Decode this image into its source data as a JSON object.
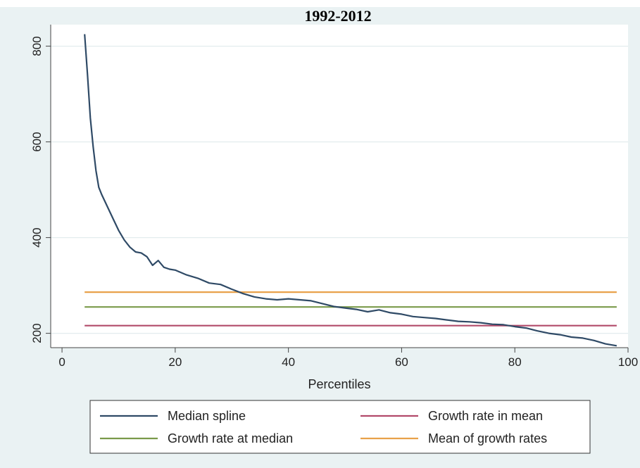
{
  "chart_data": {
    "type": "line",
    "title": "1992-2012",
    "xlabel": "Percentiles",
    "ylabel": "",
    "xlim": [
      -2,
      100
    ],
    "ylim": [
      170,
      845
    ],
    "xticks": [
      0,
      20,
      40,
      60,
      80,
      100
    ],
    "yticks": [
      200,
      400,
      600,
      800
    ],
    "grid": true,
    "legend_position": "bottom",
    "series": [
      {
        "name": "Median spline",
        "color": "#2f4a66",
        "x": [
          4,
          4.5,
          5,
          5.5,
          6,
          6.5,
          7,
          8,
          9,
          10,
          11,
          12,
          13,
          14,
          15,
          16,
          17,
          18,
          19,
          20,
          22,
          24,
          26,
          28,
          30,
          32,
          34,
          36,
          38,
          40,
          42,
          44,
          46,
          48,
          50,
          52,
          54,
          56,
          58,
          60,
          62,
          64,
          66,
          68,
          70,
          72,
          74,
          76,
          78,
          80,
          82,
          84,
          86,
          88,
          90,
          92,
          94,
          96,
          98
        ],
        "y": [
          825,
          740,
          650,
          590,
          540,
          505,
          490,
          465,
          440,
          415,
          395,
          380,
          370,
          368,
          360,
          342,
          352,
          338,
          334,
          332,
          322,
          315,
          305,
          302,
          292,
          283,
          276,
          272,
          270,
          272,
          270,
          268,
          262,
          256,
          253,
          250,
          245,
          249,
          243,
          240,
          235,
          233,
          231,
          228,
          225,
          224,
          222,
          219,
          218,
          214,
          211,
          205,
          200,
          197,
          192,
          190,
          185,
          178,
          174
        ]
      },
      {
        "name": "Growth rate in mean",
        "color": "#b24a6a",
        "x": [
          4,
          98
        ],
        "y": [
          216,
          216
        ]
      },
      {
        "name": "Growth rate at median",
        "color": "#7a9a4a",
        "x": [
          4,
          98
        ],
        "y": [
          255,
          255
        ]
      },
      {
        "name": "Mean of growth rates",
        "color": "#e8a14a",
        "x": [
          4,
          98
        ],
        "y": [
          286,
          286
        ]
      }
    ],
    "legend_order": [
      "Median spline",
      "Growth rate in mean",
      "Growth rate at median",
      "Mean of growth rates"
    ]
  },
  "colors": {
    "outer_background": "#eaf2f3",
    "plot_background": "#ffffff",
    "grid": "#e3ecee",
    "axis": "#444444"
  }
}
